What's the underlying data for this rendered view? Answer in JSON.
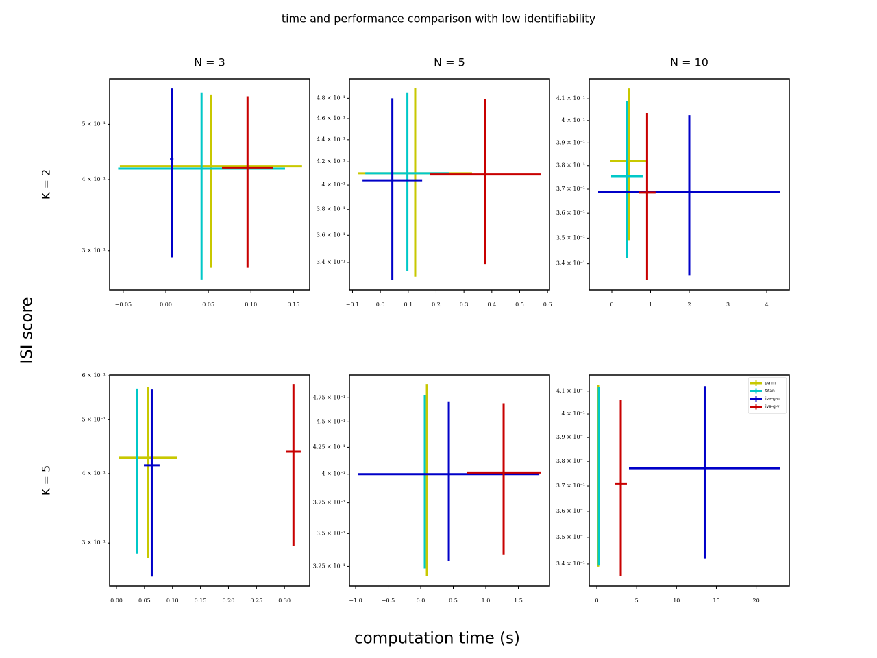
{
  "title": "time and performance comparison with low identifiability",
  "x_label": "computation time (s)",
  "y_label": "ISI score",
  "chart_data": [
    {
      "type": "errorbar",
      "title": "N = 3",
      "row_label": "K = 2",
      "yscale": "log",
      "xlim": [
        -0.066,
        0.169
      ],
      "ylim": [
        0.256,
        0.601
      ],
      "xticks": [
        {
          "value": -0.05,
          "label": "−0.05"
        },
        {
          "value": 0,
          "label": "0.00"
        },
        0.05,
        {
          "value": 0.1,
          "label": "0.10"
        },
        0.15
      ],
      "yticks": [
        {
          "value": 0.3,
          "label": "3 × 10⁻¹"
        },
        {
          "value": 0.4,
          "label": "4 × 10⁻¹"
        },
        {
          "value": 0.5,
          "label": "5 × 10⁻¹"
        }
      ],
      "series": [
        {
          "color": "#c8c800",
          "x": [
            0.053
          ],
          "xerr": [
            0.107
          ],
          "values": [
            0.422
          ],
          "yerr": [
            0.142
          ]
        },
        {
          "color": "#00c8c8",
          "x": [
            0.042
          ],
          "xerr": [
            0.098
          ],
          "values": [
            0.418
          ],
          "yerr": [
            0.151
          ]
        },
        {
          "color": "#0000c8",
          "x": [
            0.007
          ],
          "xerr": [
            0.002
          ],
          "values": [
            0.435
          ],
          "yerr": [
            0.143
          ]
        },
        {
          "color": "#c80000",
          "x": [
            0.096
          ],
          "xerr": [
            0.03
          ],
          "values": [
            0.42
          ],
          "yerr": [
            0.14
          ]
        }
      ]
    },
    {
      "type": "errorbar",
      "title": "N = 5",
      "yscale": "log",
      "xlim": [
        -0.111,
        0.607
      ],
      "ylim": [
        0.321,
        0.5
      ],
      "xticks": [
        {
          "value": -0.1,
          "label": "−0.1"
        },
        {
          "value": 0,
          "label": "0.0"
        },
        0.1,
        0.2,
        0.3,
        0.4,
        0.5,
        0.6
      ],
      "yticks": [
        {
          "value": 0.34,
          "label": "3.4 × 10⁻¹"
        },
        {
          "value": 0.36,
          "label": "3.6 × 10⁻¹"
        },
        {
          "value": 0.38,
          "label": "3.8 × 10⁻¹"
        },
        {
          "value": 0.4,
          "label": "4 × 10⁻¹"
        },
        {
          "value": 0.42,
          "label": "4.2 × 10⁻¹"
        },
        {
          "value": 0.44,
          "label": "4.4 × 10⁻¹"
        },
        {
          "value": 0.46,
          "label": "4.6 × 10⁻¹"
        },
        {
          "value": 0.48,
          "label": "4.8 × 10⁻¹"
        }
      ],
      "series": [
        {
          "color": "#c8c800",
          "x": [
            0.125
          ],
          "xerr": [
            0.204
          ],
          "values": [
            0.41
          ],
          "yerr": [
            0.08
          ]
        },
        {
          "color": "#00c8c8",
          "x": [
            0.097
          ],
          "xerr": [
            0.151
          ],
          "values": [
            0.41
          ],
          "yerr": [
            0.076
          ]
        },
        {
          "color": "#0000c8",
          "x": [
            0.043
          ],
          "xerr": [
            0.107
          ],
          "values": [
            0.404
          ],
          "yerr": [
            0.076
          ]
        },
        {
          "color": "#c80000",
          "x": [
            0.377
          ],
          "xerr": [
            0.198
          ],
          "values": [
            0.409
          ],
          "yerr": [
            0.07
          ]
        }
      ]
    },
    {
      "type": "errorbar",
      "title": "N = 10",
      "yscale": "log",
      "xlim": [
        -0.584,
        4.584
      ],
      "ylim": [
        0.33,
        0.4194
      ],
      "xticks": [
        0,
        1,
        2,
        3,
        4
      ],
      "yticks": [
        {
          "value": 0.34,
          "label": "3.4 × 10⁻¹"
        },
        {
          "value": 0.35,
          "label": "3.5 × 10⁻¹"
        },
        {
          "value": 0.36,
          "label": "3.6 × 10⁻¹"
        },
        {
          "value": 0.37,
          "label": "3.7 × 10⁻¹"
        },
        {
          "value": 0.38,
          "label": "3.8 × 10⁻¹"
        },
        {
          "value": 0.39,
          "label": "3.9 × 10⁻¹"
        },
        {
          "value": 0.4,
          "label": "4 × 10⁻¹"
        },
        {
          "value": 0.41,
          "label": "4.1 × 10⁻¹"
        }
      ],
      "series": [
        {
          "color": "#c8c800",
          "x": [
            0.434
          ],
          "xerr": [
            0.469
          ],
          "values": [
            0.382
          ],
          "yerr": [
            0.0328
          ]
        },
        {
          "color": "#00c8c8",
          "x": [
            0.389
          ],
          "xerr": [
            0.407
          ],
          "values": [
            0.3755
          ],
          "yerr": [
            0.0333
          ]
        },
        {
          "color": "#0000c8",
          "x": [
            2.0
          ],
          "xerr": [
            2.354
          ],
          "values": [
            0.369
          ],
          "yerr": [
            0.0334
          ]
        },
        {
          "color": "#c80000",
          "x": [
            0.91
          ],
          "xerr": [
            0.22
          ],
          "values": [
            0.3686
          ],
          "yerr": [
            0.0348
          ]
        }
      ]
    },
    {
      "type": "errorbar",
      "row_label": "K = 5",
      "yscale": "log",
      "xlim": [
        -0.0122,
        0.345
      ],
      "ylim": [
        0.251,
        0.602
      ],
      "xticks": [
        {
          "value": 0,
          "label": "0.00"
        },
        0.05,
        {
          "value": 0.1,
          "label": "0.10"
        },
        0.15,
        {
          "value": 0.2,
          "label": "0.20"
        },
        0.25,
        {
          "value": 0.3,
          "label": "0.30"
        }
      ],
      "yticks": [
        {
          "value": 0.3,
          "label": "3 × 10⁻¹"
        },
        {
          "value": 0.4,
          "label": "4 × 10⁻¹"
        },
        {
          "value": 0.5,
          "label": "5 × 10⁻¹"
        },
        {
          "value": 0.6,
          "label": "6 × 10⁻¹"
        }
      ],
      "series": [
        {
          "color": "#c8c800",
          "x": [
            0.056
          ],
          "xerr": [
            0.052
          ],
          "values": [
            0.427
          ],
          "yerr": [
            0.145
          ]
        },
        {
          "color": "#00c8c8",
          "x": [
            0.037
          ],
          "xerr": [
            0.002
          ],
          "values": [
            0.428
          ],
          "yerr": [
            0.141
          ]
        },
        {
          "color": "#0000c8",
          "x": [
            0.063
          ],
          "xerr": [
            0.014
          ],
          "values": [
            0.414
          ],
          "yerr": [
            0.153
          ]
        },
        {
          "color": "#c80000",
          "x": [
            0.316
          ],
          "xerr": [
            0.013
          ],
          "values": [
            0.438
          ],
          "yerr": [
            0.142
          ]
        }
      ]
    },
    {
      "type": "errorbar",
      "yscale": "log",
      "xlim": [
        -1.095,
        1.979
      ],
      "ylim": [
        0.311,
        0.5
      ],
      "xticks": [
        {
          "value": -1,
          "label": "−1.0"
        },
        {
          "value": -0.5,
          "label": "−0.5"
        },
        {
          "value": 0,
          "label": "0.0"
        },
        0.5,
        {
          "value": 1,
          "label": "1.0"
        },
        1.5
      ],
      "yticks": [
        {
          "value": 0.325,
          "label": "3.25 × 10⁻¹"
        },
        {
          "value": 0.35,
          "label": "3.5 × 10⁻¹"
        },
        {
          "value": 0.375,
          "label": "3.75 × 10⁻¹"
        },
        {
          "value": 0.4,
          "label": "4 × 10⁻¹"
        },
        {
          "value": 0.425,
          "label": "4.25 × 10⁻¹"
        },
        {
          "value": 0.45,
          "label": "4.5 × 10⁻¹"
        },
        {
          "value": 0.475,
          "label": "4.75 × 10⁻¹"
        }
      ],
      "series": [
        {
          "color": "#c8c800",
          "x": [
            0.095
          ],
          "xerr": [
            0.01
          ],
          "values": [
            0.404
          ],
          "yerr": [
            0.086
          ]
        },
        {
          "color": "#00c8c8",
          "x": [
            0.063
          ],
          "xerr": [
            0.01
          ],
          "values": [
            0.4005
          ],
          "yerr": [
            0.077
          ]
        },
        {
          "color": "#0000c8",
          "x": [
            0.432
          ],
          "xerr": [
            1.39
          ],
          "values": [
            0.4
          ],
          "yerr": [
            0.071
          ]
        },
        {
          "color": "#c80000",
          "x": [
            1.274
          ],
          "xerr": [
            0.569
          ],
          "values": [
            0.4015
          ],
          "yerr": [
            0.0675
          ]
        }
      ]
    },
    {
      "type": "errorbar",
      "yscale": "log",
      "legend": "upper right",
      "xlim": [
        -0.946,
        24.16
      ],
      "ylim": [
        0.332,
        0.4173
      ],
      "xticks": [
        0,
        5,
        10,
        15,
        20
      ],
      "yticks": [
        {
          "value": 0.34,
          "label": "3.4 × 10⁻¹"
        },
        {
          "value": 0.35,
          "label": "3.5 × 10⁻¹"
        },
        {
          "value": 0.36,
          "label": "3.6 × 10⁻¹"
        },
        {
          "value": 0.37,
          "label": "3.7 × 10⁻¹"
        },
        {
          "value": 0.38,
          "label": "3.8 × 10⁻¹"
        },
        {
          "value": 0.39,
          "label": "3.9 × 10⁻¹"
        },
        {
          "value": 0.4,
          "label": "4 × 10⁻¹"
        },
        {
          "value": 0.41,
          "label": "4.1 × 10⁻¹"
        }
      ],
      "series": [
        {
          "name": "palm",
          "color": "#c8c800",
          "x": [
            0.17
          ],
          "xerr": [
            0.05
          ],
          "values": [
            0.376
          ],
          "yerr": [
            0.037
          ]
        },
        {
          "name": "titan",
          "color": "#00c8c8",
          "x": [
            0.26
          ],
          "xerr": [
            0.05
          ],
          "values": [
            0.3756
          ],
          "yerr": [
            0.0362
          ]
        },
        {
          "name": "iva-g-n",
          "color": "#0000c8",
          "x": [
            13.54
          ],
          "xerr": [
            9.5
          ],
          "values": [
            0.3772
          ],
          "yerr": [
            0.0351
          ]
        },
        {
          "name": "iva-g-v",
          "color": "#c80000",
          "x": [
            3.01
          ],
          "xerr": [
            0.77
          ],
          "values": [
            0.371
          ],
          "yerr": [
            0.0353
          ]
        }
      ]
    }
  ]
}
